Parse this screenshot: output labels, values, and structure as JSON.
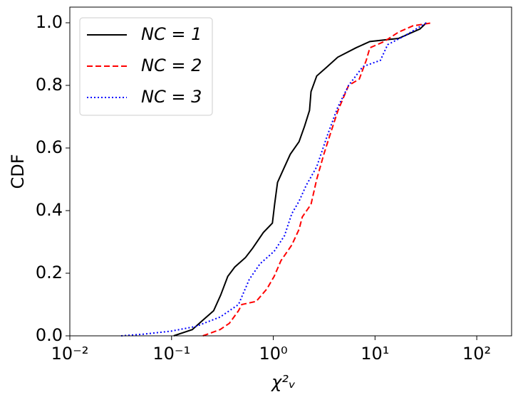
{
  "chart_data": {
    "type": "line",
    "xlabel": "χ²ᵥ",
    "ylabel": "CDF",
    "xscale": "log",
    "xlim": [
      0.01,
      220
    ],
    "ylim": [
      0,
      1.05
    ],
    "xticks": [
      {
        "value": 0.01,
        "label": "10⁻²"
      },
      {
        "value": 0.1,
        "label": "10⁻¹"
      },
      {
        "value": 1,
        "label": "10⁰"
      },
      {
        "value": 10,
        "label": "10¹"
      },
      {
        "value": 100,
        "label": "10²"
      }
    ],
    "yticks": [
      {
        "value": 0,
        "label": "0.0"
      },
      {
        "value": 0.2,
        "label": "0.2"
      },
      {
        "value": 0.4,
        "label": "0.4"
      },
      {
        "value": 0.6,
        "label": "0.6"
      },
      {
        "value": 0.8,
        "label": "0.8"
      },
      {
        "value": 1,
        "label": "1.0"
      }
    ],
    "legend": "upper left",
    "series": [
      {
        "name": "NC = 1",
        "color": "#000000",
        "linestyle": "solid",
        "x": [
          0.105,
          0.16,
          0.203,
          0.259,
          0.304,
          0.357,
          0.419,
          0.533,
          0.627,
          0.798,
          0.98,
          1.03,
          1.1,
          1.25,
          1.47,
          1.79,
          2.03,
          2.27,
          2.35,
          2.67,
          3.4,
          4.3,
          6.5,
          8.9,
          17,
          27.6,
          32
        ],
        "values": [
          0,
          0.02,
          0.05,
          0.08,
          0.13,
          0.19,
          0.22,
          0.25,
          0.28,
          0.33,
          0.36,
          0.42,
          0.49,
          0.53,
          0.58,
          0.62,
          0.67,
          0.72,
          0.78,
          0.83,
          0.86,
          0.89,
          0.92,
          0.94,
          0.95,
          0.98,
          1.0
        ]
      },
      {
        "name": "NC = 2",
        "color": "#ff0000",
        "linestyle": "dashed",
        "x": [
          0.203,
          0.3,
          0.37,
          0.455,
          0.49,
          0.68,
          0.865,
          1.02,
          1.19,
          1.52,
          1.79,
          1.93,
          2.35,
          2.67,
          3.14,
          3.68,
          4.33,
          5.5,
          7.0,
          8.2,
          8.9,
          12.3,
          17,
          23.5,
          36.8
        ],
        "values": [
          0,
          0.02,
          0.04,
          0.08,
          0.1,
          0.11,
          0.15,
          0.19,
          0.24,
          0.29,
          0.34,
          0.38,
          0.42,
          0.5,
          0.58,
          0.65,
          0.72,
          0.8,
          0.82,
          0.88,
          0.92,
          0.94,
          0.97,
          0.99,
          1.0
        ]
      },
      {
        "name": "NC = 3",
        "color": "#0000ff",
        "linestyle": "dotted",
        "x": [
          0.032,
          0.052,
          0.099,
          0.173,
          0.3,
          0.455,
          0.58,
          0.74,
          1.02,
          1.29,
          1.52,
          1.79,
          2.1,
          2.67,
          3.4,
          4.3,
          5.5,
          7.6,
          11.3,
          13.3,
          20,
          32
        ],
        "values": [
          0,
          0.005,
          0.015,
          0.03,
          0.06,
          0.1,
          0.18,
          0.23,
          0.27,
          0.32,
          0.39,
          0.43,
          0.48,
          0.54,
          0.64,
          0.73,
          0.8,
          0.86,
          0.88,
          0.93,
          0.96,
          1.0
        ]
      }
    ]
  }
}
